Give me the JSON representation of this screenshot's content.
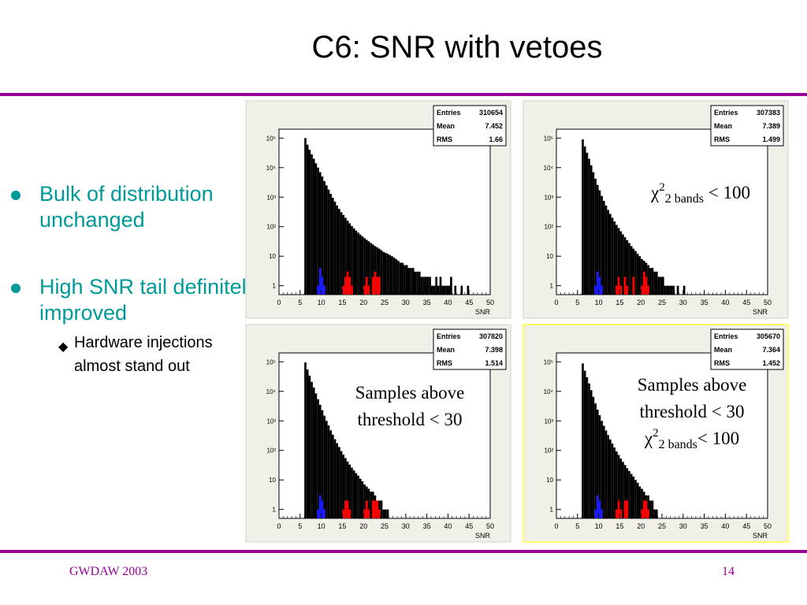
{
  "slide": {
    "title": "C6: SNR with vetoes",
    "bullets": [
      {
        "text": "Bulk of distribution unchanged"
      },
      {
        "text": "High SNR tail definitely improved"
      }
    ],
    "sub_bullet": "Hardware injections almost stand out",
    "footer_left": "GWDAW 2003",
    "page_number": "14",
    "accent_color": "#990099",
    "bullet_color": "#009999"
  },
  "annotations": {
    "chi_sym": "χ",
    "chi_sup": "2",
    "chi_sub": "2 bands",
    "chi_cond": "< 100",
    "samples_line1": "Samples above",
    "samples_line2": "threshold < 30"
  },
  "colors": {
    "bulk": "#000000",
    "low": "#1a1aff",
    "high": "#ff0000",
    "panel_bg": "#f0f0e8",
    "highlight_border": "#ffff66"
  },
  "chart_data": [
    {
      "type": "histogram",
      "xlabel": "SNR",
      "xlim": [
        0,
        50
      ],
      "ylim": [
        0.5,
        200000
      ],
      "yscale": "log",
      "xticks": [
        "0",
        "5",
        "10",
        "15",
        "20",
        "25",
        "30",
        "35",
        "40",
        "45",
        "50"
      ],
      "yticks": [
        "1",
        "10",
        "10²",
        "10³",
        "10⁴",
        "10⁵"
      ],
      "stats": [
        [
          "Entries",
          "310654"
        ],
        [
          "Mean",
          "7.452"
        ],
        [
          "RMS",
          "1.66"
        ]
      ],
      "bin_width": 0.5,
      "x_start": 6,
      "bulk": [
        100000,
        60000,
        40000,
        28000,
        20000,
        14000,
        10000,
        7000,
        5000,
        3500,
        2500,
        1800,
        1300,
        950,
        700,
        520,
        400,
        310,
        250,
        200,
        160,
        130,
        105,
        88,
        74,
        63,
        54,
        47,
        41,
        36,
        32,
        28,
        25,
        22,
        20,
        18,
        16,
        14,
        13,
        12,
        11,
        10,
        9,
        8,
        7,
        6,
        6,
        5,
        5,
        4,
        4,
        4,
        3,
        3,
        3,
        2,
        2,
        2,
        2,
        2,
        1,
        1,
        2,
        1,
        2,
        1,
        1,
        1,
        1,
        2,
        0,
        1,
        0,
        0,
        1,
        0,
        0,
        1
      ],
      "blue": [
        [
          9,
          1
        ],
        [
          9.5,
          4
        ],
        [
          10,
          2
        ],
        [
          10.5,
          1
        ]
      ],
      "red": [
        [
          15,
          1
        ],
        [
          15.5,
          2
        ],
        [
          16,
          3
        ],
        [
          16.5,
          2
        ],
        [
          17,
          1
        ],
        [
          20,
          1
        ],
        [
          20.5,
          2
        ],
        [
          21,
          1
        ],
        [
          22,
          2
        ],
        [
          22.5,
          3
        ],
        [
          23,
          2
        ],
        [
          23.5,
          2
        ]
      ]
    },
    {
      "type": "histogram",
      "xlabel": "SNR",
      "xlim": [
        0,
        50
      ],
      "ylim": [
        0.5,
        200000
      ],
      "yscale": "log",
      "xticks": [
        "0",
        "5",
        "10",
        "15",
        "20",
        "25",
        "30",
        "35",
        "40",
        "45",
        "50"
      ],
      "yticks": [
        "1",
        "10",
        "10²",
        "10³",
        "10⁴",
        "10⁵"
      ],
      "stats": [
        [
          "Entries",
          "307383"
        ],
        [
          "Mean",
          "7.389"
        ],
        [
          "RMS",
          "1.499"
        ]
      ],
      "bin_width": 0.5,
      "x_start": 6,
      "bulk": [
        90000,
        52000,
        32000,
        20000,
        12000,
        7000,
        4200,
        2600,
        1700,
        1100,
        750,
        520,
        370,
        270,
        200,
        150,
        115,
        90,
        70,
        55,
        44,
        35,
        28,
        22,
        18,
        15,
        12,
        10,
        8,
        7,
        6,
        5,
        4,
        4,
        3,
        3,
        2,
        2,
        2,
        1,
        1,
        1,
        1,
        1,
        0,
        1,
        0,
        0,
        1
      ],
      "blue": [
        [
          9,
          1
        ],
        [
          9.5,
          3
        ],
        [
          10,
          2
        ],
        [
          10.5,
          1
        ]
      ],
      "red": [
        [
          14,
          1
        ],
        [
          14.5,
          2
        ],
        [
          15,
          1
        ],
        [
          16,
          2
        ],
        [
          16.5,
          1
        ],
        [
          18,
          2
        ],
        [
          20,
          1
        ],
        [
          20.5,
          3
        ],
        [
          21,
          2
        ],
        [
          21.5,
          1
        ]
      ]
    },
    {
      "type": "histogram",
      "xlabel": "SNR",
      "xlim": [
        0,
        50
      ],
      "ylim": [
        0.5,
        200000
      ],
      "yscale": "log",
      "xticks": [
        "0",
        "5",
        "10",
        "15",
        "20",
        "25",
        "30",
        "35",
        "40",
        "45",
        "50"
      ],
      "yticks": [
        "1",
        "10",
        "10²",
        "10³",
        "10⁴",
        "10⁵"
      ],
      "stats": [
        [
          "Entries",
          "307820"
        ],
        [
          "Mean",
          "7.398"
        ],
        [
          "RMS",
          "1.514"
        ]
      ],
      "bin_width": 0.5,
      "x_start": 6,
      "bulk": [
        95000,
        55000,
        34000,
        21000,
        13500,
        8500,
        5400,
        3500,
        2300,
        1500,
        1000,
        700,
        480,
        340,
        240,
        175,
        130,
        95,
        72,
        55,
        42,
        33,
        26,
        21,
        17,
        14,
        11,
        9,
        7,
        6,
        5,
        4,
        4,
        3,
        2,
        2,
        2,
        1,
        1,
        1
      ],
      "blue": [
        [
          9,
          1
        ],
        [
          9.5,
          3
        ],
        [
          10,
          2
        ],
        [
          10.5,
          1
        ]
      ],
      "red": [
        [
          15,
          1
        ],
        [
          15.5,
          2
        ],
        [
          16,
          2
        ],
        [
          16.5,
          1
        ],
        [
          20,
          1
        ],
        [
          20.5,
          2
        ],
        [
          21,
          1
        ],
        [
          22,
          2
        ],
        [
          22.5,
          2
        ],
        [
          23,
          2
        ],
        [
          23.5,
          1
        ]
      ]
    },
    {
      "type": "histogram",
      "xlabel": "SNR",
      "xlim": [
        0,
        50
      ],
      "ylim": [
        0.5,
        200000
      ],
      "yscale": "log",
      "xticks": [
        "0",
        "5",
        "10",
        "15",
        "20",
        "25",
        "30",
        "35",
        "40",
        "45",
        "50"
      ],
      "yticks": [
        "1",
        "10",
        "10²",
        "10³",
        "10⁴",
        "10⁵"
      ],
      "stats": [
        [
          "Entries",
          "305670"
        ],
        [
          "Mean",
          "7.364"
        ],
        [
          "RMS",
          "1.452"
        ]
      ],
      "bin_width": 0.5,
      "x_start": 6,
      "bulk": [
        88000,
        50000,
        30000,
        18500,
        11000,
        6500,
        3900,
        2400,
        1550,
        1000,
        680,
        470,
        330,
        235,
        170,
        125,
        92,
        70,
        53,
        41,
        32,
        25,
        20,
        16,
        13,
        10,
        8,
        6,
        5,
        4,
        3,
        3,
        2,
        2,
        1,
        1
      ],
      "blue": [
        [
          9,
          1
        ],
        [
          9.5,
          3
        ],
        [
          10,
          2
        ],
        [
          10.5,
          1
        ]
      ],
      "red": [
        [
          14,
          1
        ],
        [
          14.5,
          2
        ],
        [
          15,
          1
        ],
        [
          16,
          2
        ],
        [
          16.5,
          2
        ],
        [
          20,
          1
        ],
        [
          20.5,
          2
        ],
        [
          21,
          2
        ],
        [
          21.5,
          1
        ]
      ]
    }
  ]
}
